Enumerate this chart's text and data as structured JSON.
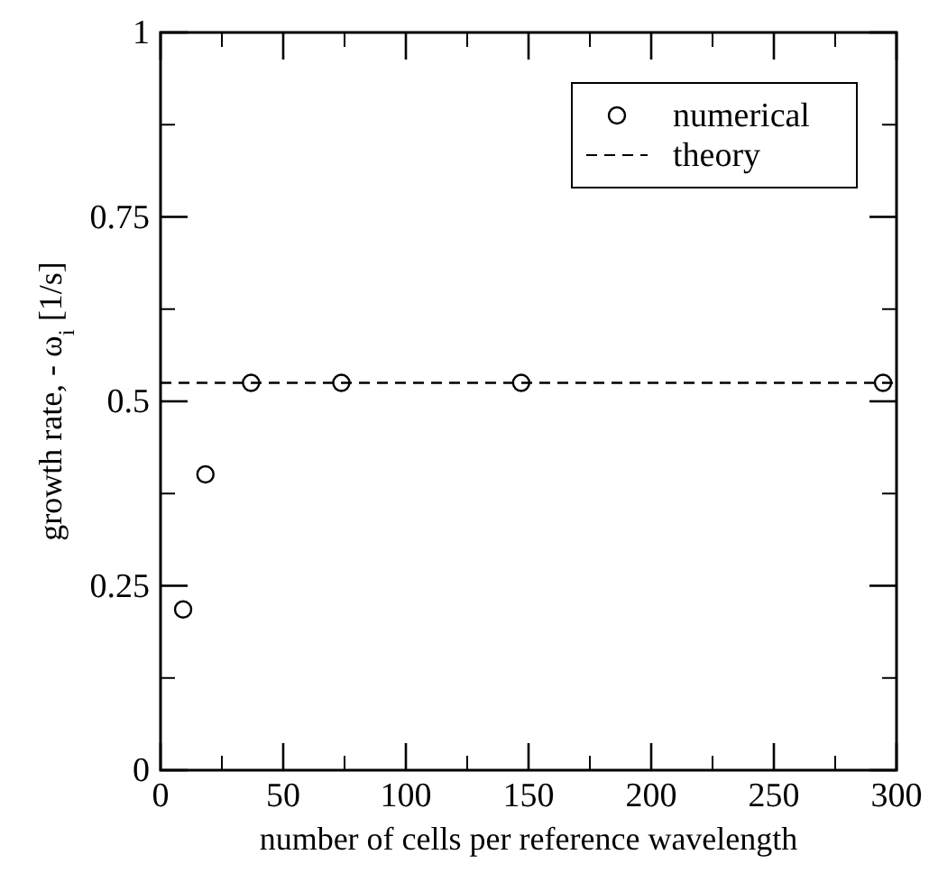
{
  "chart_data": {
    "type": "scatter",
    "xlabel": "number of cells per reference wavelength",
    "ylabel": "growth rate, - ω$_{i}$ [1/s]",
    "xlim": [
      0,
      300
    ],
    "xticks": [
      0,
      50,
      100,
      150,
      200,
      250,
      300
    ],
    "ylim": [
      0,
      1
    ],
    "yticks": [
      0,
      0.25,
      0.5,
      0.75,
      1
    ],
    "grid": false,
    "legend": "top right",
    "marker": "circle",
    "series": [
      {
        "name": "numerical",
        "color": "#000000",
        "x": [
          9.2,
          18.3,
          36.9,
          73.7,
          147,
          294.5
        ],
        "values": [
          0.218,
          0.401,
          0.525,
          0.525,
          0.525,
          0.525
        ]
      },
      {
        "name": "theory",
        "type": "line",
        "color": "#000000",
        "line_style": "dashed",
        "marker": "none",
        "x": [
          0,
          300
        ],
        "values": [
          0.525,
          0.525
        ]
      }
    ]
  }
}
